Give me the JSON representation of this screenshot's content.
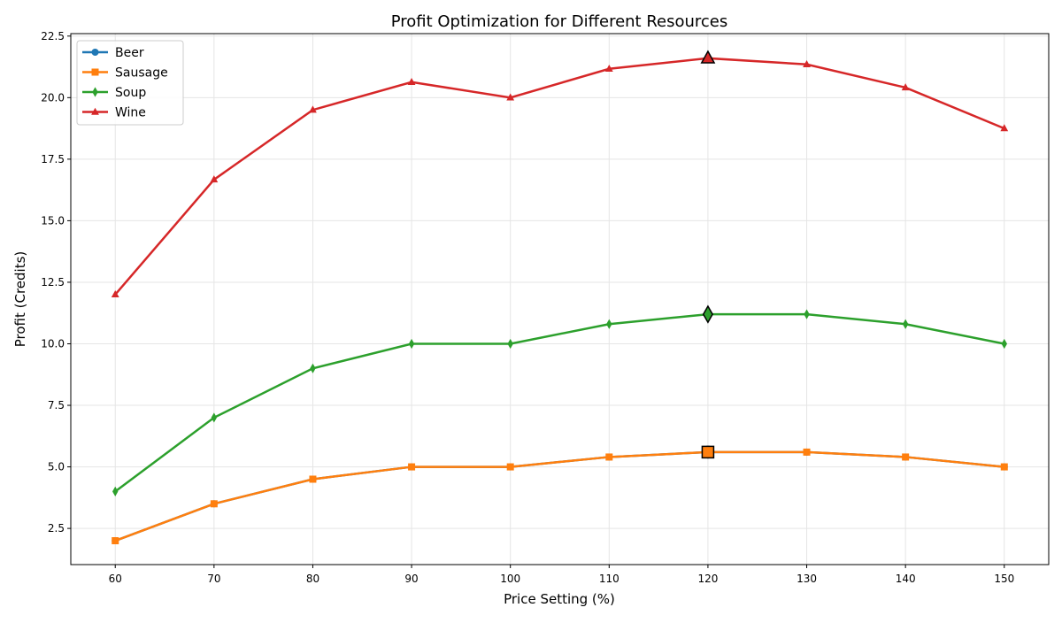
{
  "chart_data": {
    "type": "line",
    "title": "Profit Optimization for Different Resources",
    "xlabel": "Price Setting (%)",
    "ylabel": "Profit (Credits)",
    "x": [
      60,
      70,
      80,
      90,
      100,
      110,
      120,
      130,
      140,
      150
    ],
    "xlim": [
      55.5,
      154.5
    ],
    "ylim": [
      1.03,
      22.6
    ],
    "xticks": [
      "60",
      "70",
      "80",
      "90",
      "100",
      "110",
      "120",
      "130",
      "140",
      "150"
    ],
    "yticks": [
      "2.5",
      "5.0",
      "7.5",
      "10.0",
      "12.5",
      "15.0",
      "17.5",
      "20.0",
      "22.5"
    ],
    "grid": true,
    "legend_position": "top-left",
    "series": [
      {
        "name": "Beer",
        "color": "#1f77b4",
        "marker": "circle",
        "values": [
          2.0,
          3.5,
          4.5,
          5.0,
          5.0,
          5.4,
          5.6,
          5.6,
          5.4,
          5.0
        ],
        "optimum_x": 120
      },
      {
        "name": "Sausage",
        "color": "#ff7f0e",
        "marker": "square",
        "values": [
          2.0,
          3.5,
          4.5,
          5.0,
          5.0,
          5.4,
          5.6,
          5.6,
          5.4,
          5.0
        ],
        "optimum_x": 120
      },
      {
        "name": "Soup",
        "color": "#2ca02c",
        "marker": "diamond",
        "values": [
          4.0,
          7.0,
          9.0,
          10.0,
          10.0,
          10.8,
          11.2,
          11.2,
          10.8,
          10.0
        ],
        "optimum_x": 120
      },
      {
        "name": "Wine",
        "color": "#d62728",
        "marker": "triangle",
        "values": [
          12.0,
          16.67,
          19.5,
          20.63,
          20.0,
          21.17,
          21.6,
          21.35,
          20.41,
          18.75
        ],
        "optimum_x": 120
      }
    ]
  }
}
